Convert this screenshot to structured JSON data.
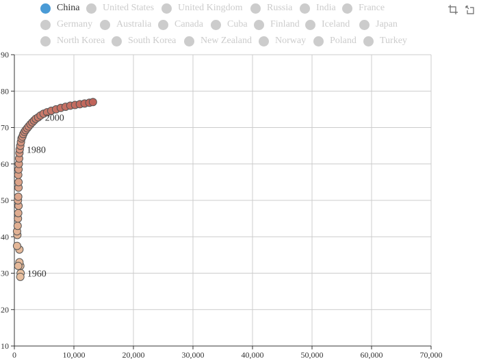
{
  "legend": {
    "items": [
      {
        "label": "China",
        "active": true
      },
      {
        "label": "United States",
        "active": false
      },
      {
        "label": "United Kingdom",
        "active": false
      },
      {
        "label": "Russia",
        "active": false
      },
      {
        "label": "India",
        "active": false
      },
      {
        "label": "France",
        "active": false
      },
      {
        "label": "Germany",
        "active": false
      },
      {
        "label": "Australia",
        "active": false
      },
      {
        "label": "Canada",
        "active": false
      },
      {
        "label": "Cuba",
        "active": false
      },
      {
        "label": "Finland",
        "active": false
      },
      {
        "label": "Iceland",
        "active": false
      },
      {
        "label": "Japan",
        "active": false
      },
      {
        "label": "North Korea",
        "active": false
      },
      {
        "label": "South Korea",
        "active": false
      },
      {
        "label": "New Zealand",
        "active": false
      },
      {
        "label": "Norway",
        "active": false
      },
      {
        "label": "Poland",
        "active": false
      },
      {
        "label": "Turkey",
        "active": false
      }
    ],
    "active_color": "#4a9bd6",
    "inactive_color": "#cccccc"
  },
  "toolbox": {
    "icons": [
      "zoom-select-icon",
      "zoom-reset-icon"
    ]
  },
  "chart_data": {
    "type": "scatter",
    "title": "",
    "xlabel": "",
    "ylabel": "",
    "xlim": [
      0,
      70000
    ],
    "ylim": [
      10,
      90
    ],
    "x_ticks": [
      "0",
      "10,000",
      "20,000",
      "30,000",
      "40,000",
      "50,000",
      "60,000",
      "70,000"
    ],
    "y_ticks": [
      "10",
      "20",
      "30",
      "40",
      "50",
      "60",
      "70",
      "80",
      "90"
    ],
    "grid": true,
    "point_color_early": "#e8c1a0",
    "point_color_late": "#c0645a",
    "point_stroke": "#555555",
    "series": [
      {
        "name": "China",
        "points": [
          {
            "x": 1050,
            "y": 30,
            "year": 1960
          },
          {
            "x": 1000,
            "y": 29
          },
          {
            "x": 1000,
            "y": 32
          },
          {
            "x": 850,
            "y": 33
          },
          {
            "x": 650,
            "y": 32
          },
          {
            "x": 850,
            "y": 36.5
          },
          {
            "x": 450,
            "y": 37.5
          },
          {
            "x": 500,
            "y": 40.5
          },
          {
            "x": 450,
            "y": 41.5
          },
          {
            "x": 550,
            "y": 43
          },
          {
            "x": 600,
            "y": 45
          },
          {
            "x": 650,
            "y": 46.5
          },
          {
            "x": 700,
            "y": 48.5
          },
          {
            "x": 600,
            "y": 50
          },
          {
            "x": 650,
            "y": 51
          },
          {
            "x": 700,
            "y": 53.5
          },
          {
            "x": 700,
            "y": 55
          },
          {
            "x": 650,
            "y": 57
          },
          {
            "x": 700,
            "y": 58.5
          },
          {
            "x": 750,
            "y": 60
          },
          {
            "x": 800,
            "y": 61.5
          },
          {
            "x": 850,
            "y": 63
          },
          {
            "x": 900,
            "y": 64,
            "year": 1980
          },
          {
            "x": 1000,
            "y": 65
          },
          {
            "x": 1100,
            "y": 66
          },
          {
            "x": 1200,
            "y": 67
          },
          {
            "x": 1350,
            "y": 67.5
          },
          {
            "x": 1500,
            "y": 68.2
          },
          {
            "x": 1700,
            "y": 68.8
          },
          {
            "x": 1900,
            "y": 69.3
          },
          {
            "x": 2150,
            "y": 69.8
          },
          {
            "x": 2400,
            "y": 70.3
          },
          {
            "x": 2700,
            "y": 70.9
          },
          {
            "x": 3000,
            "y": 71.4
          },
          {
            "x": 3300,
            "y": 71.9
          },
          {
            "x": 3600,
            "y": 72.4
          },
          {
            "x": 4000,
            "y": 72.8,
            "year": 2000
          },
          {
            "x": 4400,
            "y": 73.3
          },
          {
            "x": 4900,
            "y": 73.8
          },
          {
            "x": 5500,
            "y": 74.2
          },
          {
            "x": 6200,
            "y": 74.6
          },
          {
            "x": 7000,
            "y": 75.0
          },
          {
            "x": 7800,
            "y": 75.4
          },
          {
            "x": 8600,
            "y": 75.7
          },
          {
            "x": 9400,
            "y": 76.0
          },
          {
            "x": 10200,
            "y": 76.2
          },
          {
            "x": 11000,
            "y": 76.4
          },
          {
            "x": 11800,
            "y": 76.6
          },
          {
            "x": 12600,
            "y": 76.8
          },
          {
            "x": 13200,
            "y": 77.0
          }
        ]
      }
    ],
    "point_labels": [
      {
        "text": "1960",
        "x": 1000,
        "y": 30
      },
      {
        "text": "1980",
        "x": 900,
        "y": 64
      },
      {
        "text": "2000",
        "x": 4000,
        "y": 72.8
      }
    ]
  }
}
